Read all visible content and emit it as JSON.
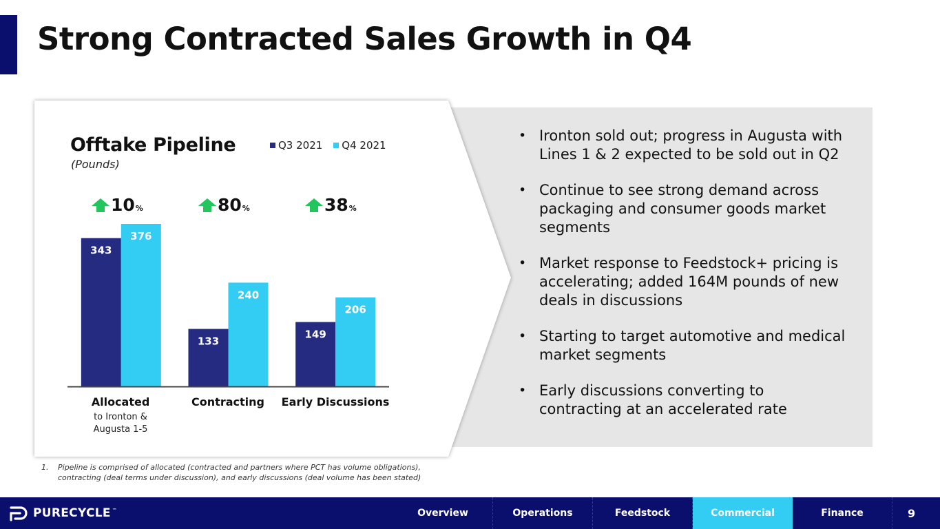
{
  "title": "Strong Contracted Sales Growth in Q4",
  "colors": {
    "navy": "#0a0f6e",
    "series_q3": "#262b82",
    "series_q4": "#33ccf2",
    "growth_arrow": "#22c55e",
    "panel_grey": "#e6e6e6",
    "active_nav": "#33ccf2"
  },
  "chart_data": {
    "type": "bar",
    "title": "Offtake Pipeline",
    "subtitle": "(Pounds)",
    "categories": [
      "Allocated",
      "Contracting",
      "Early Discussions"
    ],
    "category_sublabels": [
      "to Ironton & Augusta 1-5",
      "",
      ""
    ],
    "series": [
      {
        "name": "Q3 2021",
        "values": [
          343,
          133,
          149
        ],
        "color": "#262b82"
      },
      {
        "name": "Q4 2021",
        "values": [
          376,
          240,
          206
        ],
        "color": "#33ccf2"
      }
    ],
    "growth": [
      {
        "value": "10",
        "unit": "%"
      },
      {
        "value": "80",
        "unit": "%"
      },
      {
        "value": "38",
        "unit": "%"
      }
    ],
    "legend_position": "top-right",
    "grid": false,
    "ylim": [
      0,
      400
    ]
  },
  "bullets": [
    "Ironton sold out; progress in Augusta with Lines 1 & 2 expected to be sold out in Q2",
    "Continue to see strong demand across packaging and consumer goods market segments",
    "Market response to Feedstock+ pricing is accelerating; added 164M pounds of new deals in discussions",
    "Starting to target automotive and medical market segments",
    "Early discussions converting to contracting at an accelerated rate"
  ],
  "footnote": {
    "number": "1.",
    "text": "Pipeline is comprised of allocated (contracted and partners where PCT has volume obligations), contracting (deal terms under discussion), and early discussions (deal volume has been stated)"
  },
  "footer": {
    "brand": "PURECYCLE",
    "brand_tm": "™",
    "nav": [
      {
        "label": "Overview",
        "active": false
      },
      {
        "label": "Operations",
        "active": false
      },
      {
        "label": "Feedstock",
        "active": false
      },
      {
        "label": "Commercial",
        "active": true
      },
      {
        "label": "Finance",
        "active": false
      }
    ],
    "page_number": "9"
  }
}
